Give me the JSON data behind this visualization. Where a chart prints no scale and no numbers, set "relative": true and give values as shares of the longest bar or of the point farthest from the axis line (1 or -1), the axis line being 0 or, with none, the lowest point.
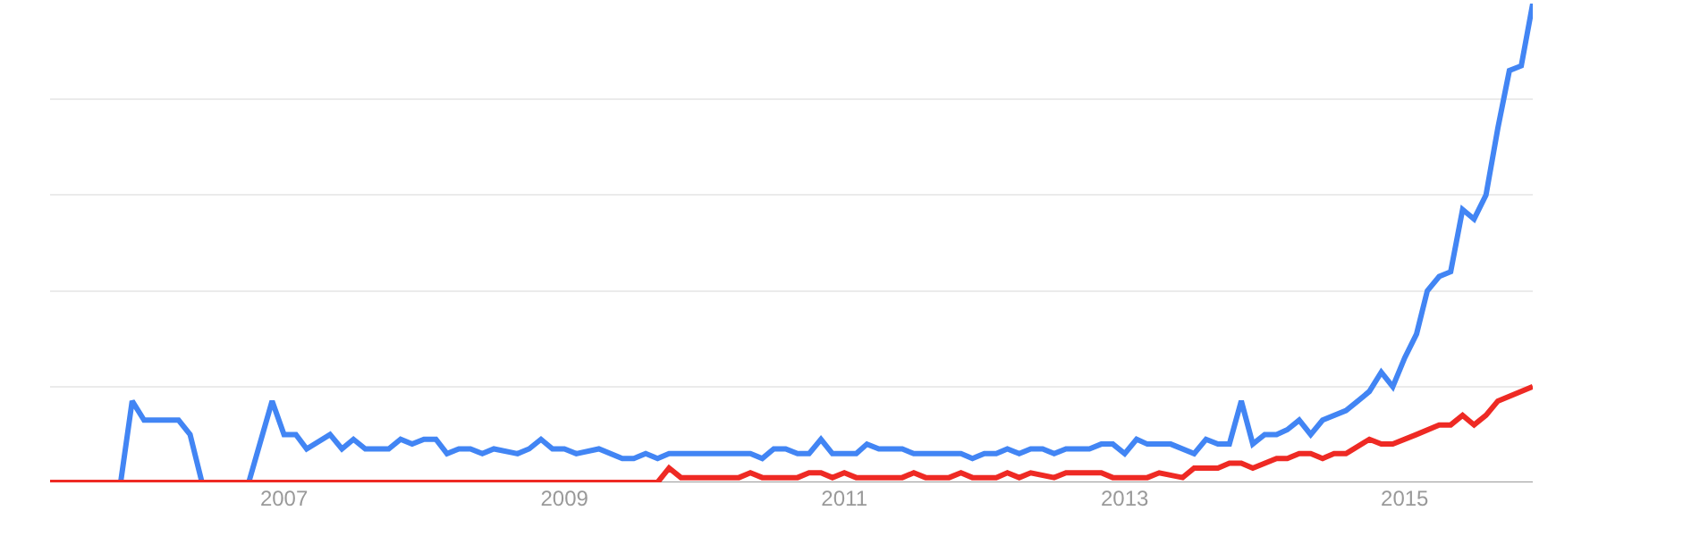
{
  "chart_data": {
    "type": "line",
    "relative": true,
    "grid": "y",
    "xlim": [
      "2005-05",
      "2015-12"
    ],
    "xticks": [
      "2007",
      "2009",
      "2011",
      "2013",
      "2015"
    ],
    "series": [
      {
        "color": "#4285f4",
        "x": [
          "2005-05",
          "2005-11",
          "2005-12",
          "2006-01",
          "2006-04",
          "2006-05",
          "2006-06",
          "2006-10",
          "2006-12",
          "2007-01",
          "2007-02",
          "2007-03",
          "2007-05",
          "2007-06",
          "2007-07",
          "2007-08",
          "2007-10",
          "2007-11",
          "2007-12",
          "2008-01",
          "2008-02",
          "2008-03",
          "2008-04",
          "2008-05",
          "2008-06",
          "2008-07",
          "2008-09",
          "2008-10",
          "2008-11",
          "2008-12",
          "2009-01",
          "2009-02",
          "2009-04",
          "2009-06",
          "2009-07",
          "2009-08",
          "2009-09",
          "2009-10",
          "2010-05",
          "2010-06",
          "2010-07",
          "2010-08",
          "2010-09",
          "2010-10",
          "2010-11",
          "2010-12",
          "2011-02",
          "2011-03",
          "2011-04",
          "2011-06",
          "2011-07",
          "2011-11",
          "2011-12",
          "2012-01",
          "2012-02",
          "2012-03",
          "2012-04",
          "2012-05",
          "2012-06",
          "2012-07",
          "2012-08",
          "2012-10",
          "2012-11",
          "2012-12",
          "2013-01",
          "2013-02",
          "2013-03",
          "2013-05",
          "2013-07",
          "2013-08",
          "2013-09",
          "2013-10",
          "2013-11",
          "2013-12",
          "2014-01",
          "2014-02",
          "2014-03",
          "2014-04",
          "2014-05",
          "2014-06",
          "2014-08",
          "2014-09",
          "2014-10",
          "2014-11",
          "2014-12",
          "2015-01",
          "2015-02",
          "2015-03",
          "2015-04",
          "2015-05",
          "2015-06",
          "2015-07",
          "2015-08",
          "2015-09",
          "2015-10",
          "2015-11",
          "2015-12"
        ],
        "values": [
          0,
          0,
          0.17,
          0.13,
          0.13,
          0.1,
          0,
          0,
          0.17,
          0.1,
          0.1,
          0.07,
          0.1,
          0.07,
          0.09,
          0.07,
          0.07,
          0.09,
          0.08,
          0.09,
          0.09,
          0.06,
          0.07,
          0.07,
          0.06,
          0.07,
          0.06,
          0.07,
          0.09,
          0.07,
          0.07,
          0.06,
          0.07,
          0.05,
          0.05,
          0.06,
          0.05,
          0.06,
          0.06,
          0.05,
          0.07,
          0.07,
          0.06,
          0.06,
          0.09,
          0.06,
          0.06,
          0.08,
          0.07,
          0.07,
          0.06,
          0.06,
          0.05,
          0.06,
          0.06,
          0.07,
          0.06,
          0.07,
          0.07,
          0.06,
          0.07,
          0.07,
          0.08,
          0.08,
          0.06,
          0.09,
          0.08,
          0.08,
          0.06,
          0.09,
          0.08,
          0.08,
          0.17,
          0.08,
          0.1,
          0.1,
          0.11,
          0.13,
          0.1,
          0.13,
          0.15,
          0.17,
          0.19,
          0.23,
          0.2,
          0.26,
          0.31,
          0.4,
          0.43,
          0.44,
          0.57,
          0.55,
          0.6,
          0.74,
          0.86,
          0.87,
          1
        ]
      },
      {
        "color": "#ee2a24",
        "x": [
          "2005-05",
          "2009-09",
          "2009-10",
          "2009-11",
          "2010-04",
          "2010-05",
          "2010-06",
          "2010-09",
          "2010-10",
          "2010-11",
          "2010-12",
          "2011-01",
          "2011-02",
          "2011-06",
          "2011-07",
          "2011-08",
          "2011-10",
          "2011-11",
          "2011-12",
          "2012-02",
          "2012-03",
          "2012-04",
          "2012-05",
          "2012-07",
          "2012-08",
          "2012-11",
          "2012-12",
          "2013-03",
          "2013-04",
          "2013-06",
          "2013-07",
          "2013-09",
          "2013-10",
          "2013-11",
          "2013-12",
          "2014-02",
          "2014-03",
          "2014-04",
          "2014-05",
          "2014-06",
          "2014-07",
          "2014-08",
          "2014-10",
          "2014-11",
          "2014-12",
          "2015-02",
          "2015-04",
          "2015-05",
          "2015-06",
          "2015-07",
          "2015-08",
          "2015-09",
          "2015-12"
        ],
        "values": [
          0,
          0,
          0.03,
          0.01,
          0.01,
          0.02,
          0.01,
          0.01,
          0.02,
          0.02,
          0.01,
          0.02,
          0.01,
          0.01,
          0.02,
          0.01,
          0.01,
          0.02,
          0.01,
          0.01,
          0.02,
          0.01,
          0.02,
          0.01,
          0.02,
          0.02,
          0.01,
          0.01,
          0.02,
          0.01,
          0.03,
          0.03,
          0.04,
          0.04,
          0.03,
          0.05,
          0.05,
          0.06,
          0.06,
          0.05,
          0.06,
          0.06,
          0.09,
          0.08,
          0.08,
          0.1,
          0.12,
          0.12,
          0.14,
          0.12,
          0.14,
          0.17,
          0.2
        ]
      }
    ]
  }
}
